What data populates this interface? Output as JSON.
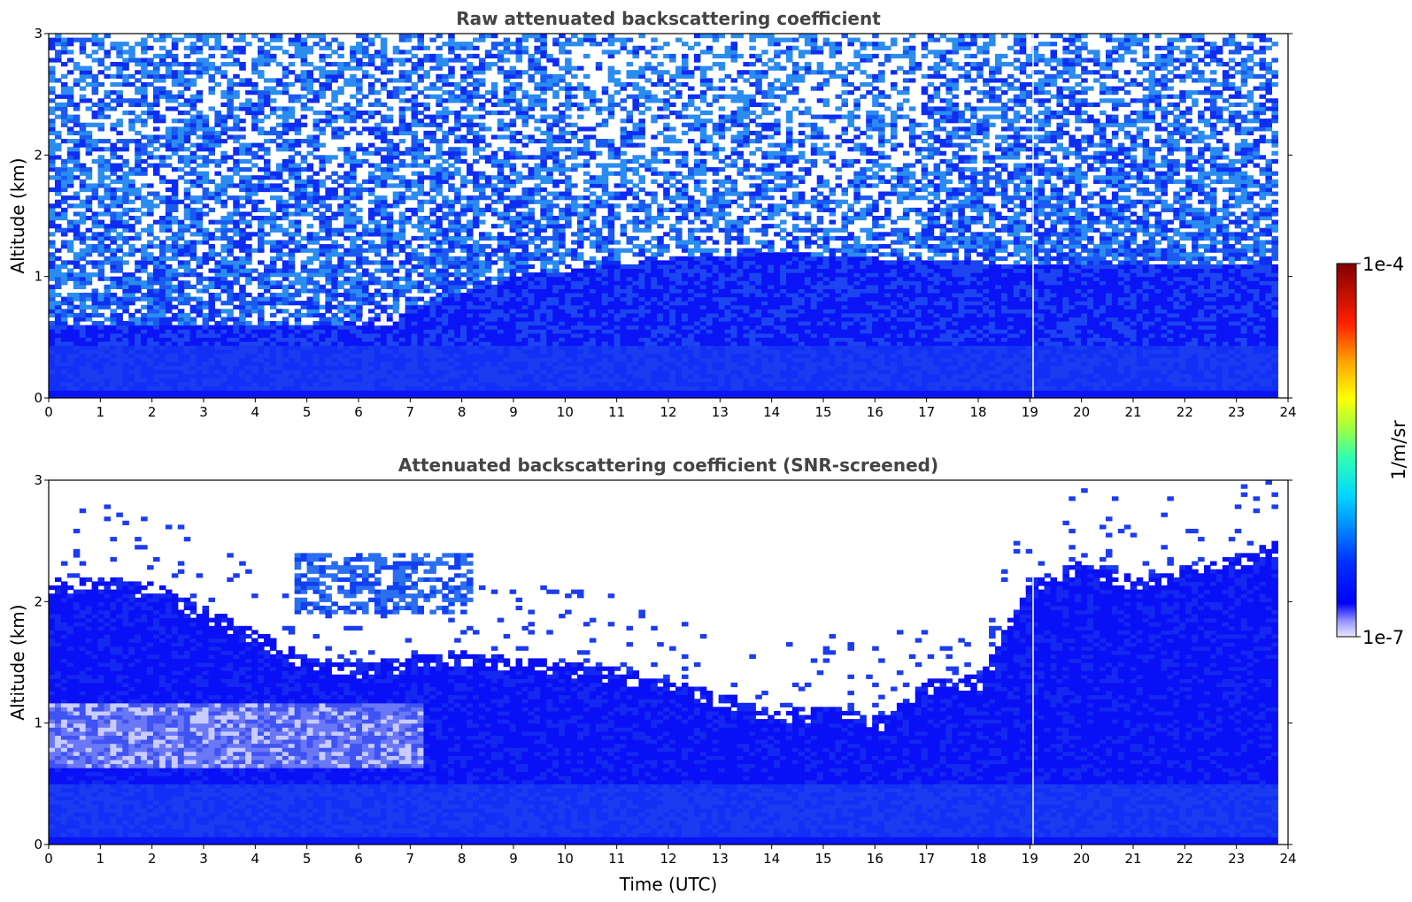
{
  "chart_data": [
    {
      "type": "heatmap",
      "title": "Raw attenuated backscattering coefficient",
      "xlabel": "",
      "ylabel": "Altitude (km)",
      "xlim": [
        0,
        24
      ],
      "ylim": [
        0,
        3
      ],
      "x_ticks": [
        "0",
        "1",
        "2",
        "3",
        "4",
        "5",
        "6",
        "7",
        "8",
        "9",
        "10",
        "11",
        "12",
        "13",
        "14",
        "15",
        "16",
        "17",
        "18",
        "19",
        "20",
        "21",
        "22",
        "23",
        "24"
      ],
      "y_ticks": [
        "0",
        "1",
        "2",
        "3"
      ],
      "data_end_time": 23.8,
      "gap_time": 19.05,
      "boundary_layer_top_km": [
        {
          "t": 0,
          "h": 0.6
        },
        {
          "t": 2,
          "h": 0.6
        },
        {
          "t": 4,
          "h": 0.6
        },
        {
          "t": 5.5,
          "h": 0.6
        },
        {
          "t": 7,
          "h": 0.75
        },
        {
          "t": 9,
          "h": 1.0
        },
        {
          "t": 12,
          "h": 1.15
        },
        {
          "t": 14,
          "h": 1.2
        },
        {
          "t": 16,
          "h": 1.15
        },
        {
          "t": 19,
          "h": 1.1
        },
        {
          "t": 21,
          "h": 1.1
        },
        {
          "t": 23.8,
          "h": 1.1
        }
      ],
      "noise_description_level": "high"
    },
    {
      "type": "heatmap",
      "title": "Attenuated backscattering coefficient (SNR-screened)",
      "xlabel": "Time (UTC)",
      "ylabel": "Altitude (km)",
      "xlim": [
        0,
        24
      ],
      "ylim": [
        0,
        3
      ],
      "x_ticks": [
        "0",
        "1",
        "2",
        "3",
        "4",
        "5",
        "6",
        "7",
        "8",
        "9",
        "10",
        "11",
        "12",
        "13",
        "14",
        "15",
        "16",
        "17",
        "18",
        "19",
        "20",
        "21",
        "22",
        "23",
        "24"
      ],
      "y_ticks": [
        "0",
        "1",
        "2",
        "3"
      ],
      "data_end_time": 23.8,
      "gap_time": 19.05,
      "screened_signal_top_km": [
        {
          "t": 0,
          "h": 2.2
        },
        {
          "t": 1,
          "h": 2.2
        },
        {
          "t": 2,
          "h": 2.15
        },
        {
          "t": 3,
          "h": 1.95
        },
        {
          "t": 4,
          "h": 1.75
        },
        {
          "t": 5,
          "h": 1.55
        },
        {
          "t": 6,
          "h": 1.5
        },
        {
          "t": 7,
          "h": 1.55
        },
        {
          "t": 8,
          "h": 1.6
        },
        {
          "t": 9,
          "h": 1.55
        },
        {
          "t": 10,
          "h": 1.5
        },
        {
          "t": 11,
          "h": 1.45
        },
        {
          "t": 12,
          "h": 1.35
        },
        {
          "t": 13,
          "h": 1.25
        },
        {
          "t": 14,
          "h": 1.1
        },
        {
          "t": 15,
          "h": 1.15
        },
        {
          "t": 16,
          "h": 1.05
        },
        {
          "t": 17,
          "h": 1.35
        },
        {
          "t": 18,
          "h": 1.4
        },
        {
          "t": 19,
          "h": 2.2
        },
        {
          "t": 20,
          "h": 2.35
        },
        {
          "t": 21,
          "h": 2.2
        },
        {
          "t": 22,
          "h": 2.3
        },
        {
          "t": 23,
          "h": 2.4
        },
        {
          "t": 23.8,
          "h": 2.5
        }
      ],
      "aerosol_layer_km": {
        "t_start": 0,
        "t_end": 7.2,
        "h_low": 0.65,
        "h_high": 1.15
      },
      "elevated_patch_km": {
        "t_start": 4.7,
        "t_end": 8.1,
        "h_low": 1.9,
        "h_high": 2.4
      }
    }
  ],
  "colorbar": {
    "label": "1/m/sr",
    "max_label": "1e-4",
    "min_label": "1e-7",
    "colormap": [
      "#ffffff",
      "#c8c8ff",
      "#0000ff",
      "#00aaff",
      "#00ffff",
      "#aaff55",
      "#ffff00",
      "#ff8800",
      "#ff0000",
      "#800000"
    ]
  }
}
